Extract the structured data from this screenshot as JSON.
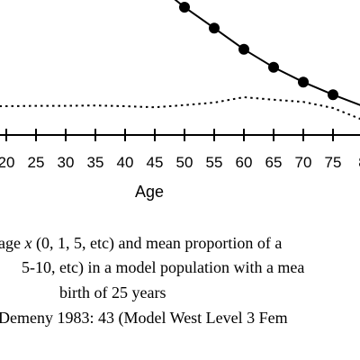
{
  "chart_data": {
    "type": "line",
    "xlabel": "Age",
    "x_ticks": [
      "20",
      "25",
      "30",
      "35",
      "40",
      "45",
      "50",
      "55",
      "60",
      "65",
      "70",
      "75",
      "8"
    ],
    "series": [
      {
        "style": "solid-with-markers",
        "x": [
          50,
          55,
          60,
          65,
          70,
          75
        ],
        "y_screen_rel": [
          0.02,
          0.078,
          0.137,
          0.187,
          0.228,
          0.263
        ]
      },
      {
        "style": "dotted",
        "x": [
          10,
          15,
          20,
          25,
          30,
          35,
          40,
          45,
          50,
          55,
          60,
          65,
          70,
          75,
          80
        ],
        "y_screen_rel": [
          0.295,
          0.295,
          0.295,
          0.294,
          0.294,
          0.293,
          0.295,
          0.298,
          0.292,
          0.285,
          0.27,
          0.277,
          0.283,
          0.3,
          0.333
        ]
      }
    ],
    "colors": {
      "line": "#000000",
      "marker": "#000000",
      "background": "#ffffff"
    }
  },
  "caption": {
    "line1_prefix": "age ",
    "line1_var": "x",
    "line1_suffix": " (0, 1, 5, etc) and mean proportion of a",
    "line2": "5-10, etc) in a model population with a mea",
    "line3": "birth of 25 years",
    "line4": "Demeny 1983: 43 (Model West Level 3 Fem"
  }
}
